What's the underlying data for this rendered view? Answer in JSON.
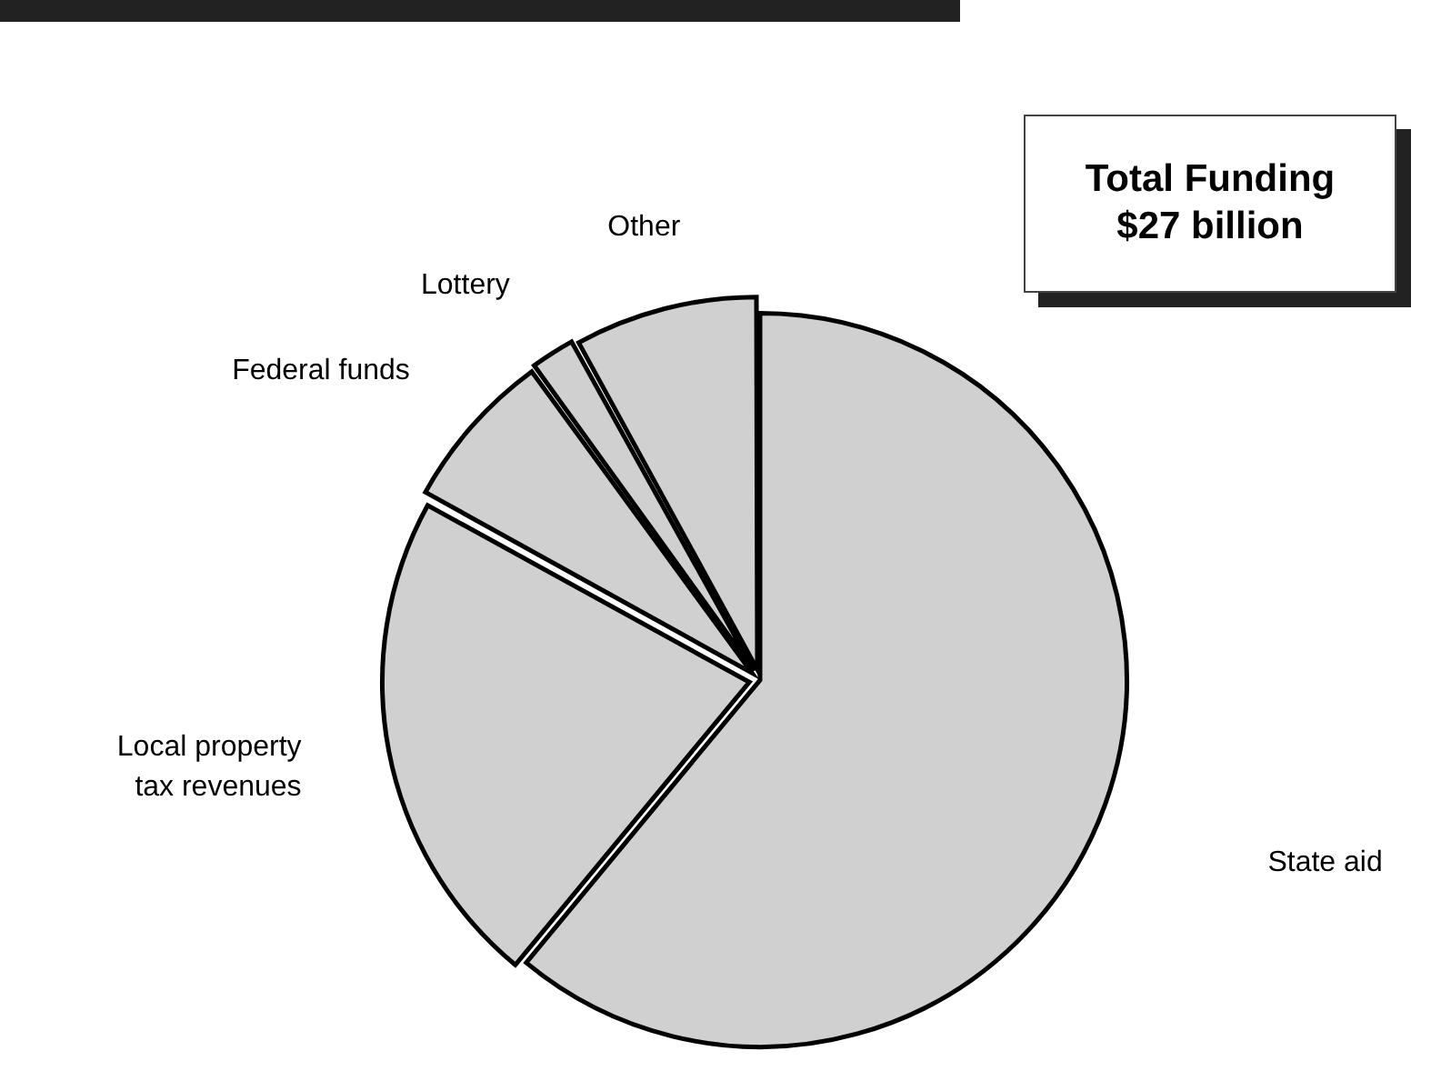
{
  "chart_data": {
    "type": "pie",
    "title": "Total Funding $27 billion",
    "categories": [
      "State aid",
      "Local property tax revenues",
      "Federal funds",
      "Lottery",
      "Other"
    ],
    "values": [
      61,
      22,
      7,
      2,
      8
    ],
    "colors": [
      "#d0d0d0",
      "#d0d0d0",
      "#d0d0d0",
      "#d0d0d0",
      "#d0d0d0"
    ],
    "legend": false
  }
}
